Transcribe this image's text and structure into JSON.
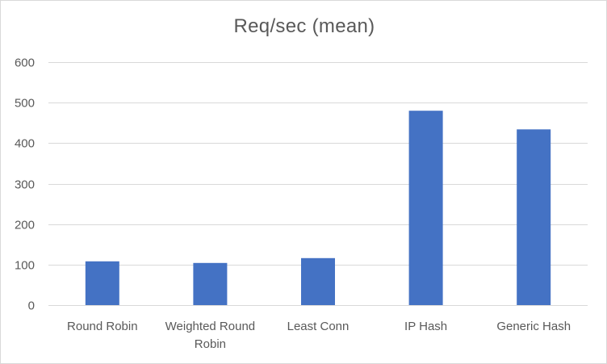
{
  "chart_data": {
    "type": "bar",
    "title": "Req/sec (mean)",
    "categories": [
      "Round Robin",
      "Weighted Round Robin",
      "Least Conn",
      "IP Hash",
      "Generic Hash"
    ],
    "category_label_lines": [
      [
        "Round Robin"
      ],
      [
        "Weighted Round",
        "Robin"
      ],
      [
        "Least Conn"
      ],
      [
        "IP Hash"
      ],
      [
        "Generic Hash"
      ]
    ],
    "values": [
      108,
      104,
      116,
      480,
      434
    ],
    "ylim": [
      0,
      600
    ],
    "yticks": [
      0,
      100,
      200,
      300,
      400,
      500,
      600
    ],
    "grid": true,
    "legend": "none",
    "bar_color": "#4472c4"
  }
}
